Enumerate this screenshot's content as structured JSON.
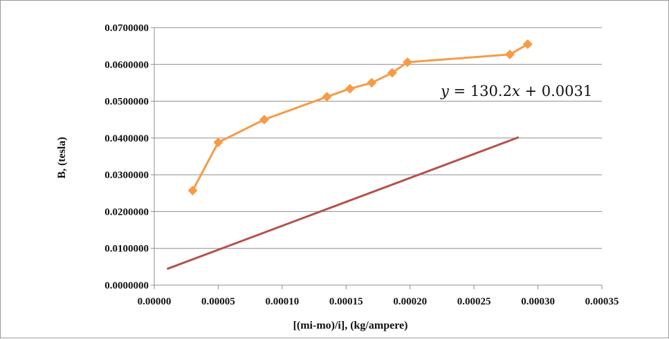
{
  "chart_data": {
    "type": "line",
    "title": "",
    "xlabel": "[(mi-mo)/i], (kg/ampere)",
    "ylabel": "B, (tesla)",
    "xlim": [
      0,
      0.00035
    ],
    "ylim": [
      0,
      0.07
    ],
    "x_ticks": [
      "0.00000",
      "0.00005",
      "0.00010",
      "0.00015",
      "0.00020",
      "0.00025",
      "0.00030",
      "0.00035"
    ],
    "y_ticks": [
      "0.0000000",
      "0.0100000",
      "0.0200000",
      "0.0300000",
      "0.0400000",
      "0.0500000",
      "0.0600000",
      "0.0700000"
    ],
    "grid": "horizontal",
    "series": [
      {
        "color": "#f79b47",
        "marker": "diamond",
        "x": [
          3e-05,
          5e-05,
          8.6e-05,
          0.000135,
          0.000153,
          0.00017,
          0.000186,
          0.000198,
          0.000278,
          0.000292
        ],
        "y": [
          0.0257,
          0.0388,
          0.045,
          0.0512,
          0.0534,
          0.055,
          0.0577,
          0.0606,
          0.0627,
          0.0655
        ]
      }
    ],
    "trendline": {
      "color": "#b3514e",
      "slope": 130.2,
      "intercept": 0.0031,
      "x_range": [
        1e-05,
        0.000285
      ]
    },
    "equation": {
      "y": "y",
      "eq": " = 130.2",
      "x": "x",
      "rest": " + 0.0031"
    }
  }
}
